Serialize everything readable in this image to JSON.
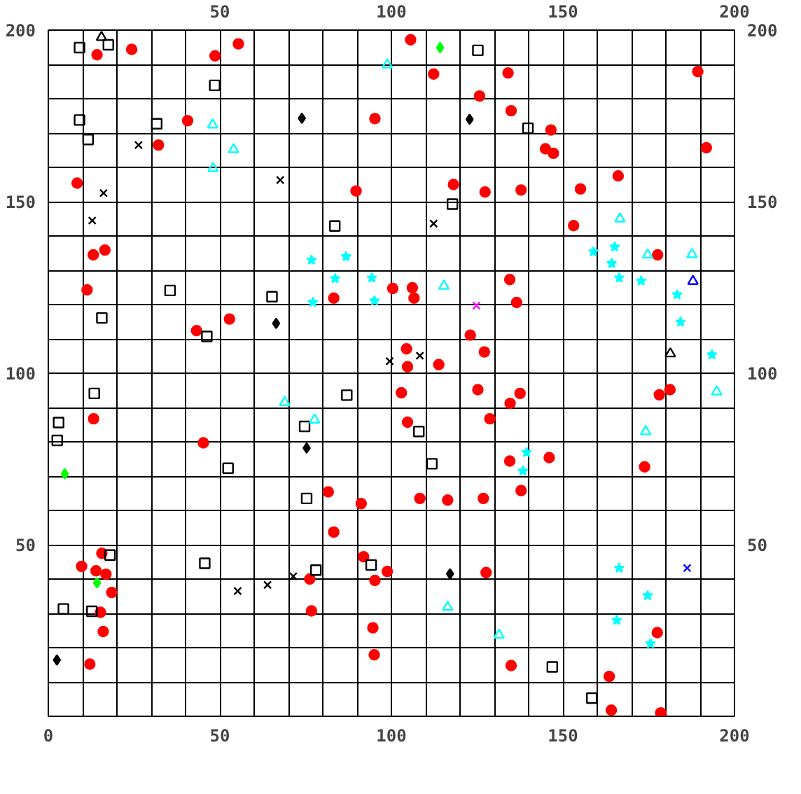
{
  "chart_data": {
    "type": "scatter",
    "xlim": [
      0,
      200
    ],
    "ylim": [
      0,
      200
    ],
    "grid": true,
    "xticks": [
      0,
      {
        "value": 10,
        "label": null
      },
      {
        "value": 20,
        "label": null
      },
      {
        "value": 30,
        "label": null
      },
      {
        "value": 40,
        "label": null
      },
      50,
      {
        "value": 60,
        "label": null
      },
      {
        "value": 70,
        "label": null
      },
      {
        "value": 80,
        "label": null
      },
      {
        "value": 90,
        "label": null
      },
      100,
      {
        "value": 110,
        "label": null
      },
      {
        "value": 120,
        "label": null
      },
      {
        "value": 130,
        "label": null
      },
      {
        "value": 140,
        "label": null
      },
      150,
      {
        "value": 160,
        "label": null
      },
      {
        "value": 170,
        "label": null
      },
      {
        "value": 180,
        "label": null
      },
      {
        "value": 190,
        "label": null
      },
      200
    ],
    "x2lim": [
      0,
      200
    ],
    "x2ticks": [
      50,
      100,
      150,
      200
    ],
    "yticks": [
      {
        "value": 0,
        "label": null
      },
      {
        "value": 10,
        "label": null
      },
      {
        "value": 20,
        "label": null
      },
      {
        "value": 30,
        "label": null
      },
      {
        "value": 40,
        "label": null
      },
      50,
      {
        "value": 60,
        "label": null
      },
      {
        "value": 70,
        "label": null
      },
      {
        "value": 80,
        "label": null
      },
      {
        "value": 90,
        "label": null
      },
      100,
      {
        "value": 110,
        "label": null
      },
      {
        "value": 120,
        "label": null
      },
      {
        "value": 130,
        "label": null
      },
      {
        "value": 140,
        "label": null
      },
      150,
      {
        "value": 160,
        "label": null
      },
      {
        "value": 170,
        "label": null
      },
      {
        "value": 180,
        "label": null
      },
      {
        "value": 190,
        "label": null
      },
      200
    ],
    "y2lim": [
      0,
      200
    ],
    "y2ticks": [
      50,
      100,
      150,
      200
    ],
    "series": [
      {
        "color": "#ff0000",
        "marker": "circle",
        "x": [
          14.2,
          24.3,
          48.6,
          55.4,
          40.6,
          32.1,
          95.2,
          8.4,
          89.7,
          13.1,
          16.5,
          11.3,
          83.2,
          52.8,
          43.2,
          105.6,
          112.3,
          134.0,
          125.7,
          134.9,
          146.5,
          144.9,
          147.2,
          189.3,
          191.8,
          118.1,
          127.3,
          137.8,
          155.1,
          166.1,
          153.1,
          177.6,
          100.4,
          106.1,
          106.6,
          134.5,
          136.5,
          123.0,
          104.4,
          127.1,
          104.7,
          113.8,
          13.2,
          45.2,
          81.6,
          91.2,
          83.2,
          91.9,
          15.6,
          9.7,
          13.9,
          16.8,
          18.5,
          15.2,
          16.0,
          12.1,
          76.2,
          95.2,
          98.8,
          76.7,
          94.6,
          95.0,
          102.9,
          125.2,
          137.5,
          134.6,
          181.2,
          178.1,
          104.7,
          128.7,
          134.5,
          146.0,
          173.8,
          137.8,
          108.3,
          116.4,
          126.8,
          127.6,
          177.5,
          134.9,
          163.5,
          164.1,
          178.5
        ],
        "values": [
          192.8,
          194.4,
          192.5,
          196.0,
          173.6,
          166.5,
          174.2,
          155.4,
          153.1,
          134.5,
          135.9,
          124.3,
          121.9,
          115.8,
          112.4,
          197.2,
          187.2,
          187.5,
          180.8,
          176.5,
          170.9,
          165.4,
          164.1,
          187.9,
          165.7,
          155.0,
          152.8,
          153.4,
          153.7,
          157.5,
          143.0,
          134.5,
          124.7,
          124.9,
          121.9,
          127.3,
          120.6,
          111.1,
          107.1,
          106.2,
          101.9,
          102.5,
          86.7,
          79.7,
          65.4,
          62.0,
          53.7,
          46.5,
          47.5,
          43.7,
          42.4,
          41.4,
          36.1,
          30.3,
          24.7,
          15.2,
          40.0,
          39.6,
          42.2,
          30.7,
          25.8,
          17.9,
          94.3,
          95.2,
          94.1,
          91.2,
          95.2,
          93.7,
          85.7,
          86.7,
          74.4,
          75.4,
          72.7,
          65.8,
          63.5,
          63.0,
          63.5,
          41.9,
          24.4,
          14.8,
          11.6,
          1.8,
          1.0
        ]
      },
      {
        "color": "#000000",
        "marker": "square",
        "x": [
          9.1,
          17.5,
          48.5,
          9.1,
          31.6,
          11.6,
          83.5,
          35.5,
          65.2,
          15.6,
          46.2,
          125.2,
          139.8,
          117.8,
          13.4,
          3.0,
          2.6,
          52.4,
          74.7,
          87.0,
          75.3,
          18.0,
          45.6,
          78.0,
          94.1,
          4.4,
          12.7,
          108.0,
          111.8,
          146.9,
          158.4
        ],
        "values": [
          194.9,
          195.7,
          183.9,
          173.8,
          172.7,
          168.1,
          142.9,
          124.1,
          122.3,
          116.1,
          110.7,
          194.1,
          171.4,
          149.3,
          94.1,
          85.6,
          80.4,
          72.3,
          84.5,
          93.6,
          63.5,
          47.0,
          44.6,
          42.6,
          44.1,
          31.3,
          30.6,
          83.0,
          73.6,
          14.4,
          5.3
        ]
      },
      {
        "color": "#00ffff",
        "marker": "triangle",
        "x": [
          98.8,
          47.9,
          54.0,
          48.0,
          166.6,
          174.7,
          187.6,
          115.3,
          68.9,
          77.6,
          194.8,
          174.1,
          116.4,
          131.4
        ],
        "values": [
          189.9,
          172.4,
          165.2,
          159.7,
          145.0,
          134.5,
          134.6,
          125.4,
          91.5,
          86.4,
          94.6,
          83.0,
          31.8,
          23.7
        ]
      },
      {
        "color": "#00ffff",
        "marker": "star",
        "x": [
          76.7,
          86.8,
          83.6,
          94.3,
          77.1,
          95.1,
          158.9,
          165.1,
          164.2,
          166.4,
          172.8,
          183.3,
          184.3,
          193.4,
          139.4,
          138.3,
          166.4,
          174.7,
          165.7,
          175.5
        ],
        "values": [
          133.0,
          134.0,
          127.6,
          127.8,
          120.7,
          121.1,
          135.4,
          136.8,
          132.0,
          127.8,
          126.9,
          122.9,
          114.9,
          105.4,
          76.9,
          71.5,
          43.2,
          35.2,
          28.0,
          21.2
        ]
      },
      {
        "color": "#000000",
        "marker": "cross",
        "x": [
          26.3,
          16.1,
          12.8,
          67.6,
          99.5,
          112.3,
          108.3,
          55.2,
          63.9,
          71.4
        ],
        "values": [
          166.5,
          152.5,
          144.5,
          156.3,
          103.5,
          143.6,
          105.1,
          36.5,
          38.3,
          40.8
        ]
      },
      {
        "color": "#000000",
        "marker": "diamond",
        "x": [
          73.9,
          122.8,
          66.4,
          75.3,
          2.5,
          117.1
        ],
        "values": [
          174.3,
          174.0,
          114.5,
          78.2,
          16.4,
          41.5
        ]
      },
      {
        "color": "#000000",
        "marker": "triangle",
        "x": [
          15.5,
          181.3
        ],
        "values": [
          197.9,
          105.7
        ]
      },
      {
        "color": "#00ff00",
        "marker": "diamond",
        "x": [
          114.2,
          4.8,
          14.2
        ],
        "values": [
          194.9,
          70.7,
          38.9
        ]
      },
      {
        "color": "#ff00ff",
        "marker": "cross",
        "x": [
          124.8
        ],
        "values": [
          119.7
        ]
      },
      {
        "color": "#0000ff",
        "marker": "triangle",
        "x": [
          187.9
        ],
        "values": [
          126.8
        ]
      },
      {
        "color": "#0000ff",
        "marker": "cross",
        "x": [
          186.2
        ],
        "values": [
          43.2
        ]
      }
    ]
  }
}
